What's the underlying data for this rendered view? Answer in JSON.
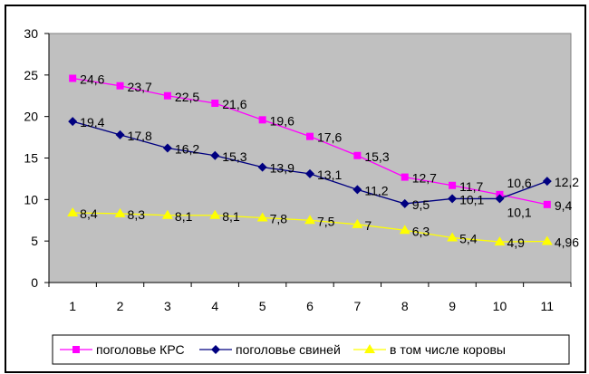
{
  "chart_data": {
    "type": "line",
    "title": "",
    "xlabel": "",
    "ylabel": "",
    "categories": [
      "1",
      "2",
      "3",
      "4",
      "5",
      "6",
      "7",
      "8",
      "9",
      "10",
      "11"
    ],
    "ylim": [
      0,
      30
    ],
    "yticks": [
      "0",
      "5",
      "10",
      "15",
      "20",
      "25",
      "30"
    ],
    "grid": false,
    "legend_position": "bottom",
    "series": [
      {
        "name": "поголовье КРС",
        "color": "#ff00ff",
        "marker": "square",
        "values": [
          24.6,
          23.7,
          22.5,
          21.6,
          19.6,
          17.6,
          15.3,
          12.7,
          11.7,
          10.6,
          9.4
        ],
        "labels": [
          "24,6",
          "23,7",
          "22,5",
          "21,6",
          "19,6",
          "17,6",
          "15,3",
          "12,7",
          "11,7",
          "10,6",
          "9,4"
        ]
      },
      {
        "name": "поголовье свиней",
        "color": "#000080",
        "marker": "diamond",
        "values": [
          19.4,
          17.8,
          16.2,
          15.3,
          13.9,
          13.1,
          11.2,
          9.5,
          10.1,
          10.1,
          12.2
        ],
        "labels": [
          "19,4",
          "17,8",
          "16,2",
          "15,3",
          "13,9",
          "13,1",
          "11,2",
          "9,5",
          "10,1",
          "10,1",
          "12,2"
        ]
      },
      {
        "name": "в том числе коровы",
        "color": "#ffff00",
        "marker": "triangle",
        "values": [
          8.4,
          8.3,
          8.1,
          8.1,
          7.8,
          7.5,
          7,
          6.3,
          5.4,
          4.9,
          4.96
        ],
        "labels": [
          "8,4",
          "8,3",
          "8,1",
          "8,1",
          "7,8",
          "7,5",
          "7",
          "6,3",
          "5,4",
          "4,9",
          "4,96"
        ]
      }
    ]
  }
}
